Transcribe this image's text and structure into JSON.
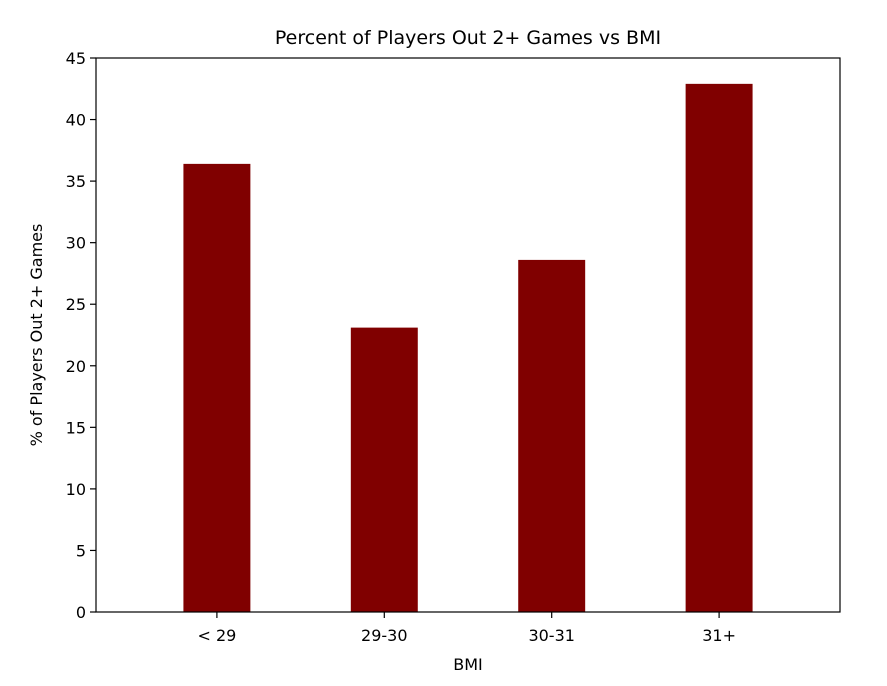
{
  "chart_data": {
    "type": "bar",
    "title": "Percent of Players Out 2+ Games vs BMI",
    "xlabel": "BMI",
    "ylabel": "% of Players Out 2+ Games",
    "categories": [
      "< 29",
      "29-30",
      "30-31",
      "31+"
    ],
    "values": [
      36.4,
      23.1,
      28.6,
      42.9
    ],
    "ylim": [
      0,
      45
    ],
    "yticks": [
      0,
      5,
      10,
      15,
      20,
      25,
      30,
      35,
      40,
      45
    ],
    "bar_color": "#800000",
    "grid": false,
    "legend": "none"
  }
}
